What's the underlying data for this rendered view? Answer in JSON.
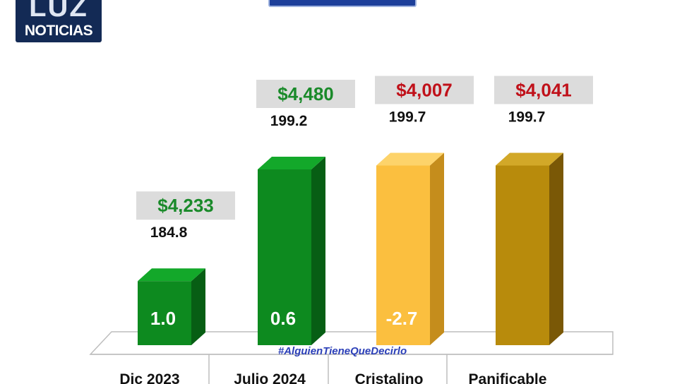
{
  "logo": {
    "top_text": "LUZ",
    "bottom_text": "NOTICIAS"
  },
  "watermark": "#AlguienTieneQueDecirlo",
  "colors": {
    "green_front": "#0d8a1f",
    "green_side": "#075e14",
    "green_top": "#13a82a",
    "yellow_front": "#fbbf3f",
    "yellow_side": "#c58d1c",
    "yellow_top": "#fdd36a",
    "gold_front": "#b88b0c",
    "gold_side": "#7a5806",
    "gold_top": "#d2a828",
    "price_green": "#1a8a2a",
    "price_red": "#c0111a",
    "price_box": "#dcdcdc",
    "watermark": "#2b3fb8"
  },
  "chart_data": {
    "type": "bar",
    "categories": [
      "Dic 2023",
      "Julio 2024",
      "Cristalino",
      "Panificable"
    ],
    "series": [
      {
        "values": [
          184.8,
          199.2,
          199.7,
          199.7
        ]
      }
    ],
    "bar_labels": [
      "1.0",
      "0.6",
      "-2.7",
      ""
    ],
    "prices": [
      {
        "text": "$4,233",
        "color": "green"
      },
      {
        "text": "$4,480",
        "color": "green"
      },
      {
        "text": "$4,007",
        "color": "red"
      },
      {
        "text": "$4,041",
        "color": "red"
      }
    ],
    "value_labels": [
      "184.8",
      "199.2",
      "199.7",
      "199.7"
    ],
    "bar_colors": [
      "green",
      "green",
      "yellow",
      "gold"
    ],
    "title": "",
    "xlabel": "",
    "ylabel": "",
    "grid": false,
    "legend": "none"
  }
}
